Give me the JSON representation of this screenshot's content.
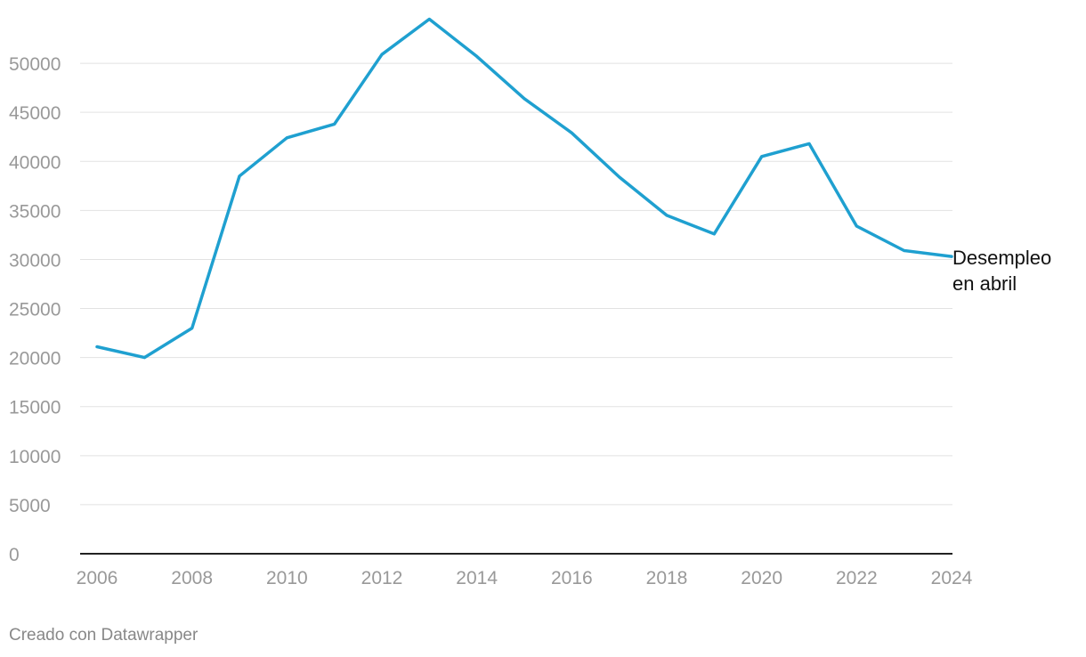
{
  "chart_data": {
    "type": "line",
    "x": [
      2006,
      2007,
      2008,
      2009,
      2010,
      2011,
      2012,
      2013,
      2014,
      2015,
      2016,
      2017,
      2018,
      2019,
      2020,
      2021,
      2022,
      2023,
      2024
    ],
    "series": [
      {
        "name": "Desempleo en abril",
        "label_lines": [
          "Desempleo",
          "en abril"
        ],
        "values": [
          21100,
          20000,
          23000,
          38500,
          42400,
          43800,
          50900,
          54500,
          50700,
          46400,
          42900,
          38400,
          34500,
          32600,
          40500,
          41800,
          33400,
          30900,
          30300
        ],
        "color": "#1fa0d0"
      }
    ],
    "x_ticks": [
      "2006",
      "2008",
      "2010",
      "2012",
      "2014",
      "2016",
      "2018",
      "2020",
      "2022",
      "2024"
    ],
    "y_ticks": [
      "0",
      "5000",
      "10000",
      "15000",
      "20000",
      "25000",
      "30000",
      "35000",
      "40000",
      "45000",
      "50000"
    ],
    "ylim": [
      0,
      55000
    ],
    "xlim": [
      2006,
      2024
    ],
    "grid": true,
    "legend": "direct label at line end"
  },
  "footer": {
    "credit": "Creado con Datawrapper"
  }
}
